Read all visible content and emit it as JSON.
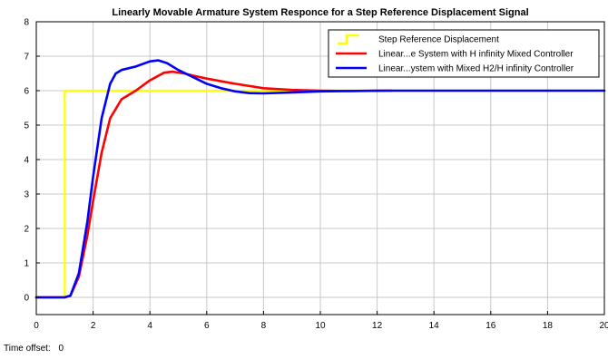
{
  "window": {
    "time_offset_label": "Time offset:",
    "time_offset_value": "0"
  },
  "chart_data": {
    "type": "line",
    "title": "Linearly Movable Armature System Responce for a Step Reference Displacement Signal",
    "xlabel": "",
    "ylabel": "",
    "xlim": [
      0,
      20
    ],
    "ylim": [
      -0.5,
      8
    ],
    "xticks": [
      0,
      2,
      4,
      6,
      8,
      10,
      12,
      14,
      16,
      18,
      20
    ],
    "yticks": [
      0,
      1,
      2,
      3,
      4,
      5,
      6,
      7,
      8
    ],
    "grid": true,
    "legend_position": "top-right",
    "series": [
      {
        "name": "Step Reference Displacement",
        "color": "#ffff00",
        "legend_marker": "step",
        "x": [
          0,
          1,
          1,
          20
        ],
        "y": [
          0,
          0,
          6,
          6
        ]
      },
      {
        "name": "Linear...e System with H infinity Mixed Controller",
        "color": "#ff0000",
        "legend_marker": "line",
        "x": [
          0,
          1,
          1.2,
          1.5,
          1.8,
          2.0,
          2.3,
          2.6,
          3.0,
          3.5,
          4.0,
          4.5,
          4.8,
          5.2,
          5.6,
          6.0,
          7.0,
          8.0,
          9.0,
          10.0,
          11.0,
          12.5
        ],
        "y": [
          0,
          0,
          0.05,
          0.6,
          1.8,
          2.8,
          4.2,
          5.2,
          5.75,
          6.0,
          6.3,
          6.52,
          6.55,
          6.5,
          6.42,
          6.35,
          6.2,
          6.07,
          6.02,
          6.0,
          5.99,
          6.0
        ]
      },
      {
        "name": "Linear...ystem with Mixed H2/H infinity Controller",
        "color": "#0000ff",
        "legend_marker": "line",
        "x": [
          0,
          1,
          1.2,
          1.5,
          1.8,
          2.0,
          2.3,
          2.6,
          2.8,
          3.0,
          3.5,
          4.0,
          4.3,
          4.6,
          5.0,
          5.5,
          6.0,
          6.5,
          7.0,
          7.5,
          8.0,
          9.0,
          10.0,
          12.0,
          14.0,
          20.0
        ],
        "y": [
          0,
          0,
          0.05,
          0.7,
          2.2,
          3.5,
          5.2,
          6.2,
          6.5,
          6.6,
          6.7,
          6.85,
          6.88,
          6.8,
          6.6,
          6.4,
          6.2,
          6.07,
          5.98,
          5.93,
          5.92,
          5.95,
          5.98,
          6.0,
          6.0,
          6.0
        ]
      }
    ]
  }
}
